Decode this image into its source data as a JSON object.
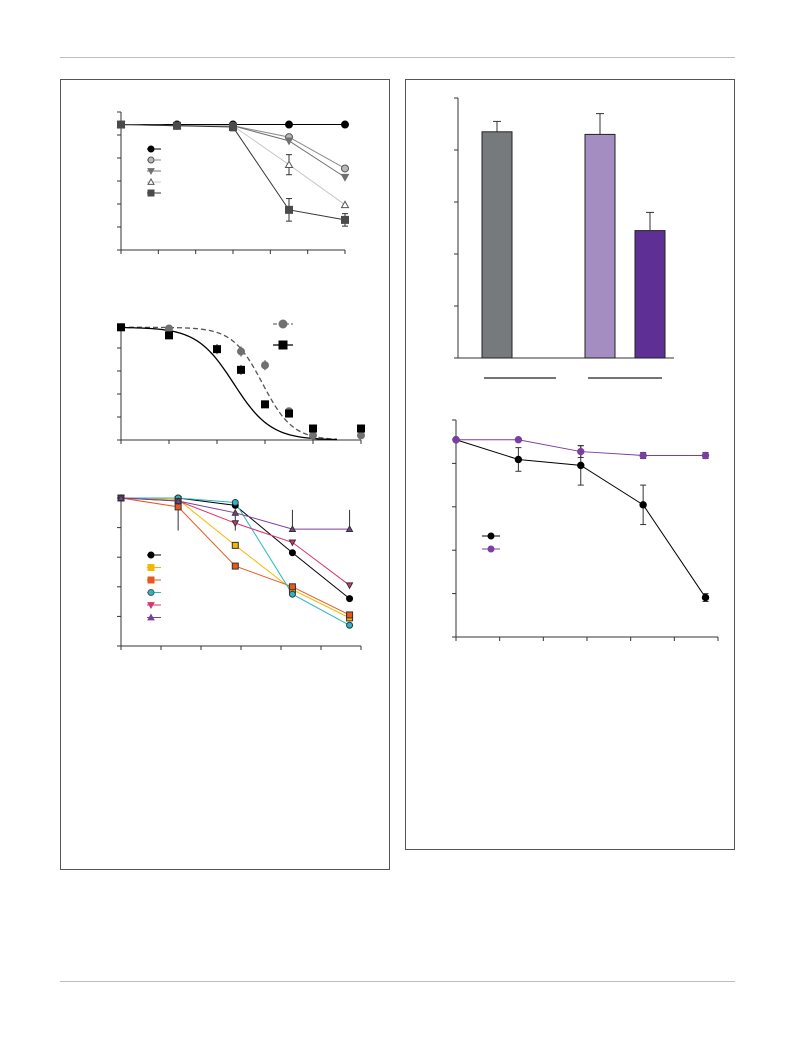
{
  "chart_data": [
    {
      "id": "A1",
      "type": "line",
      "x": [
        0,
        1,
        2,
        3,
        4
      ],
      "ylim": [
        0,
        1.1
      ],
      "series": [
        {
          "values": [
            1.0,
            1.0,
            1.0,
            1.0,
            1.0
          ],
          "err": [
            0,
            0,
            0,
            0,
            0
          ],
          "color": "#000000",
          "marker": "circle",
          "line": "#000000"
        },
        {
          "values": [
            1.0,
            0.99,
            0.99,
            0.9,
            0.65
          ],
          "err": [
            0,
            0,
            0,
            0,
            0
          ],
          "color": "#b8b8b8",
          "marker": "circle",
          "line": "#888888"
        },
        {
          "values": [
            1.0,
            0.99,
            0.99,
            0.87,
            0.58
          ],
          "err": [
            0,
            0,
            0,
            0,
            0
          ],
          "color": "#707070",
          "marker": "triangle-down",
          "line": "#707070"
        },
        {
          "values": [
            1.0,
            0.99,
            0.99,
            0.68,
            0.36
          ],
          "err": [
            0,
            0,
            0,
            0.08,
            0
          ],
          "color": "#ffffff",
          "marker": "triangle",
          "line": "#c8c8c8"
        },
        {
          "values": [
            1.0,
            0.99,
            0.98,
            0.32,
            0.24
          ],
          "err": [
            0,
            0,
            0.03,
            0.09,
            0.05
          ],
          "color": "#4a4a4a",
          "marker": "square",
          "line": "#333333"
        }
      ]
    },
    {
      "id": "A2",
      "type": "scatter",
      "x": [
        0,
        1,
        2,
        2.5,
        3,
        3.5,
        4,
        5
      ],
      "ylim": [
        0,
        1.0
      ],
      "series": [
        {
          "values": [
            0.98,
            0.97,
            0.79,
            0.77,
            0.65,
            0.25,
            0.04,
            0.04
          ],
          "marker": "circle",
          "color": "#707070",
          "fit": "dashed"
        },
        {
          "values": [
            0.98,
            0.91,
            0.79,
            0.61,
            0.31,
            0.23,
            0.1,
            0.1
          ],
          "marker": "square",
          "color": "#000000",
          "fit": "solid"
        }
      ],
      "legend_position": "top-right"
    },
    {
      "id": "A3",
      "type": "line",
      "x": [
        0,
        1,
        2,
        3,
        4
      ],
      "ylim": [
        0,
        1.0
      ],
      "series": [
        {
          "values": [
            1.0,
            1.0,
            0.95,
            0.63,
            0.32
          ],
          "color": "#000000",
          "marker": "circle",
          "line": "#000000"
        },
        {
          "values": [
            1.0,
            0.99,
            0.68,
            0.38,
            0.19
          ],
          "color": "#f5b800",
          "marker": "square",
          "line": "#f5b800"
        },
        {
          "values": [
            1.0,
            0.94,
            0.54,
            0.4,
            0.21
          ],
          "color": "#e8581c",
          "marker": "square",
          "line": "#e8581c"
        },
        {
          "values": [
            1.0,
            1.0,
            0.97,
            0.35,
            0.14
          ],
          "color": "#2ab7c8",
          "marker": "circle",
          "line": "#2ab7c8"
        },
        {
          "values": [
            1.0,
            0.98,
            0.83,
            0.7,
            0.41
          ],
          "color": "#d8336a",
          "marker": "triangle-down",
          "line": "#d8336a"
        },
        {
          "values": [
            1.0,
            0.98,
            0.9,
            0.79,
            0.79
          ],
          "color": "#7b3fa0",
          "marker": "triangle",
          "line": "#7b3fa0"
        }
      ]
    },
    {
      "id": "B1",
      "type": "bar",
      "ylim": [
        0,
        100
      ],
      "values": [
        87,
        0,
        86,
        49
      ],
      "err": [
        4,
        0,
        8,
        7
      ],
      "colors": [
        "#767a7d",
        "#767a7d",
        "#a48dc1",
        "#5e2f94"
      ]
    },
    {
      "id": "B2",
      "type": "line",
      "x": [
        0,
        1,
        2,
        3,
        4
      ],
      "ylim": [
        0,
        1.1
      ],
      "series": [
        {
          "values": [
            1.0,
            0.9,
            0.87,
            0.67,
            0.2
          ],
          "err": [
            0,
            0.06,
            0.1,
            0.1,
            0.02
          ],
          "color": "#000000",
          "line": "#000000"
        },
        {
          "values": [
            1.0,
            1.0,
            0.94,
            0.92,
            0.92
          ],
          "err": [
            0,
            0,
            0.03,
            0.015,
            0.015
          ],
          "color": "#7b3fa0",
          "line": "#7b3fa0"
        }
      ]
    }
  ]
}
